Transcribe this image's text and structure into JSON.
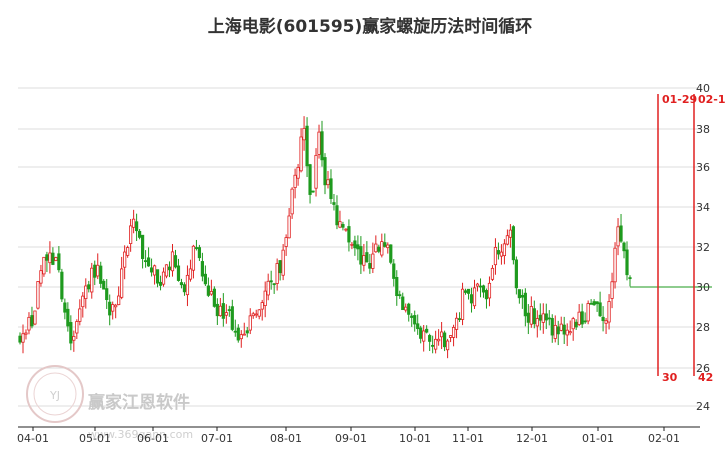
{
  "chart_data": {
    "type": "candlestick",
    "title": "上海电影(601595)赢家螺旋历法时间循环",
    "xlabel": "",
    "ylabel": "",
    "ylim": [
      24,
      40
    ],
    "yticks": [
      24,
      26,
      28,
      30,
      32,
      34,
      36,
      38,
      40
    ],
    "grid": true,
    "x_tick_labels": [
      "04-01",
      "05-01",
      "06-01",
      "07-01",
      "08-01",
      "09-01",
      "10-01",
      "11-01",
      "12-01",
      "01-01",
      "02-01"
    ],
    "colors": {
      "up": "#e02020",
      "down": "#1e9a1e",
      "cycle": "#e02020",
      "grid": "#dddddd"
    },
    "reference_line": 30.0,
    "cycle_lines": [
      {
        "date_label": "01-29",
        "count_label": "30"
      },
      {
        "date_label": "02-1",
        "count_label": "42"
      }
    ],
    "close_path": [
      [
        0,
        27.4
      ],
      [
        2,
        28.4
      ],
      [
        3,
        30.7
      ],
      [
        4,
        31.6
      ],
      [
        6,
        30.9
      ],
      [
        7,
        29.0
      ],
      [
        8,
        27.2
      ],
      [
        9,
        28.6
      ],
      [
        10,
        29.7
      ],
      [
        12,
        31.0
      ],
      [
        13,
        30.2
      ],
      [
        14,
        28.7
      ],
      [
        15,
        29.2
      ],
      [
        16,
        30.6
      ],
      [
        18,
        33.6
      ],
      [
        19,
        32.0
      ],
      [
        20,
        31.0
      ],
      [
        21,
        30.8
      ],
      [
        22,
        30.3
      ],
      [
        23,
        30.9
      ],
      [
        24,
        31.4
      ],
      [
        25,
        30.5
      ],
      [
        26,
        30.0
      ],
      [
        27,
        31.6
      ],
      [
        28,
        31.9
      ],
      [
        29,
        30.0
      ],
      [
        30,
        29.6
      ],
      [
        31,
        28.9
      ],
      [
        32,
        28.5
      ],
      [
        33,
        28.4
      ],
      [
        34,
        27.8
      ],
      [
        35,
        27.3
      ],
      [
        36,
        28.1
      ],
      [
        37,
        28.7
      ],
      [
        38,
        29.5
      ],
      [
        39,
        30.2
      ],
      [
        40,
        30.6
      ],
      [
        41,
        31.1
      ],
      [
        42,
        33.0
      ],
      [
        43,
        35.1
      ],
      [
        44,
        36.6
      ],
      [
        44.5,
        39.4
      ],
      [
        45,
        36.1
      ],
      [
        46,
        34.2
      ],
      [
        47,
        38.2
      ],
      [
        48,
        35.3
      ],
      [
        49,
        34.6
      ],
      [
        50,
        33.3
      ],
      [
        51,
        32.9
      ],
      [
        52,
        32.6
      ],
      [
        53,
        31.9
      ],
      [
        54,
        31.3
      ],
      [
        55,
        30.8
      ],
      [
        56,
        32.2
      ],
      [
        57,
        31.8
      ],
      [
        58,
        31.9
      ],
      [
        59,
        30.1
      ],
      [
        60,
        29.0
      ],
      [
        61,
        28.9
      ],
      [
        62,
        28.3
      ],
      [
        63,
        27.7
      ],
      [
        64,
        27.6
      ],
      [
        65,
        27.2
      ],
      [
        66,
        27.4
      ],
      [
        67,
        27.2
      ],
      [
        68,
        27.4
      ],
      [
        69,
        28.4
      ],
      [
        70,
        30.1
      ],
      [
        71,
        29.4
      ],
      [
        72,
        29.9
      ],
      [
        73,
        29.5
      ],
      [
        74,
        30.3
      ],
      [
        75,
        32.2
      ],
      [
        76,
        31.2
      ],
      [
        77,
        33.4
      ],
      [
        78,
        29.8
      ],
      [
        79,
        29.2
      ],
      [
        80,
        28.6
      ],
      [
        81,
        28.6
      ],
      [
        82,
        28.4
      ],
      [
        83,
        28.6
      ],
      [
        84,
        27.8
      ],
      [
        85,
        27.9
      ],
      [
        86,
        28.0
      ],
      [
        87,
        28.0
      ],
      [
        88,
        28.3
      ],
      [
        89,
        28.7
      ],
      [
        90,
        29.2
      ],
      [
        91,
        28.8
      ],
      [
        92,
        28.4
      ],
      [
        93,
        29.3
      ],
      [
        94,
        32.9
      ],
      [
        95,
        31.7
      ],
      [
        96,
        30.0
      ]
    ]
  },
  "watermark": {
    "brand": "赢家江恩软件",
    "url": "www.369gann.com",
    "badge": "YJ"
  }
}
